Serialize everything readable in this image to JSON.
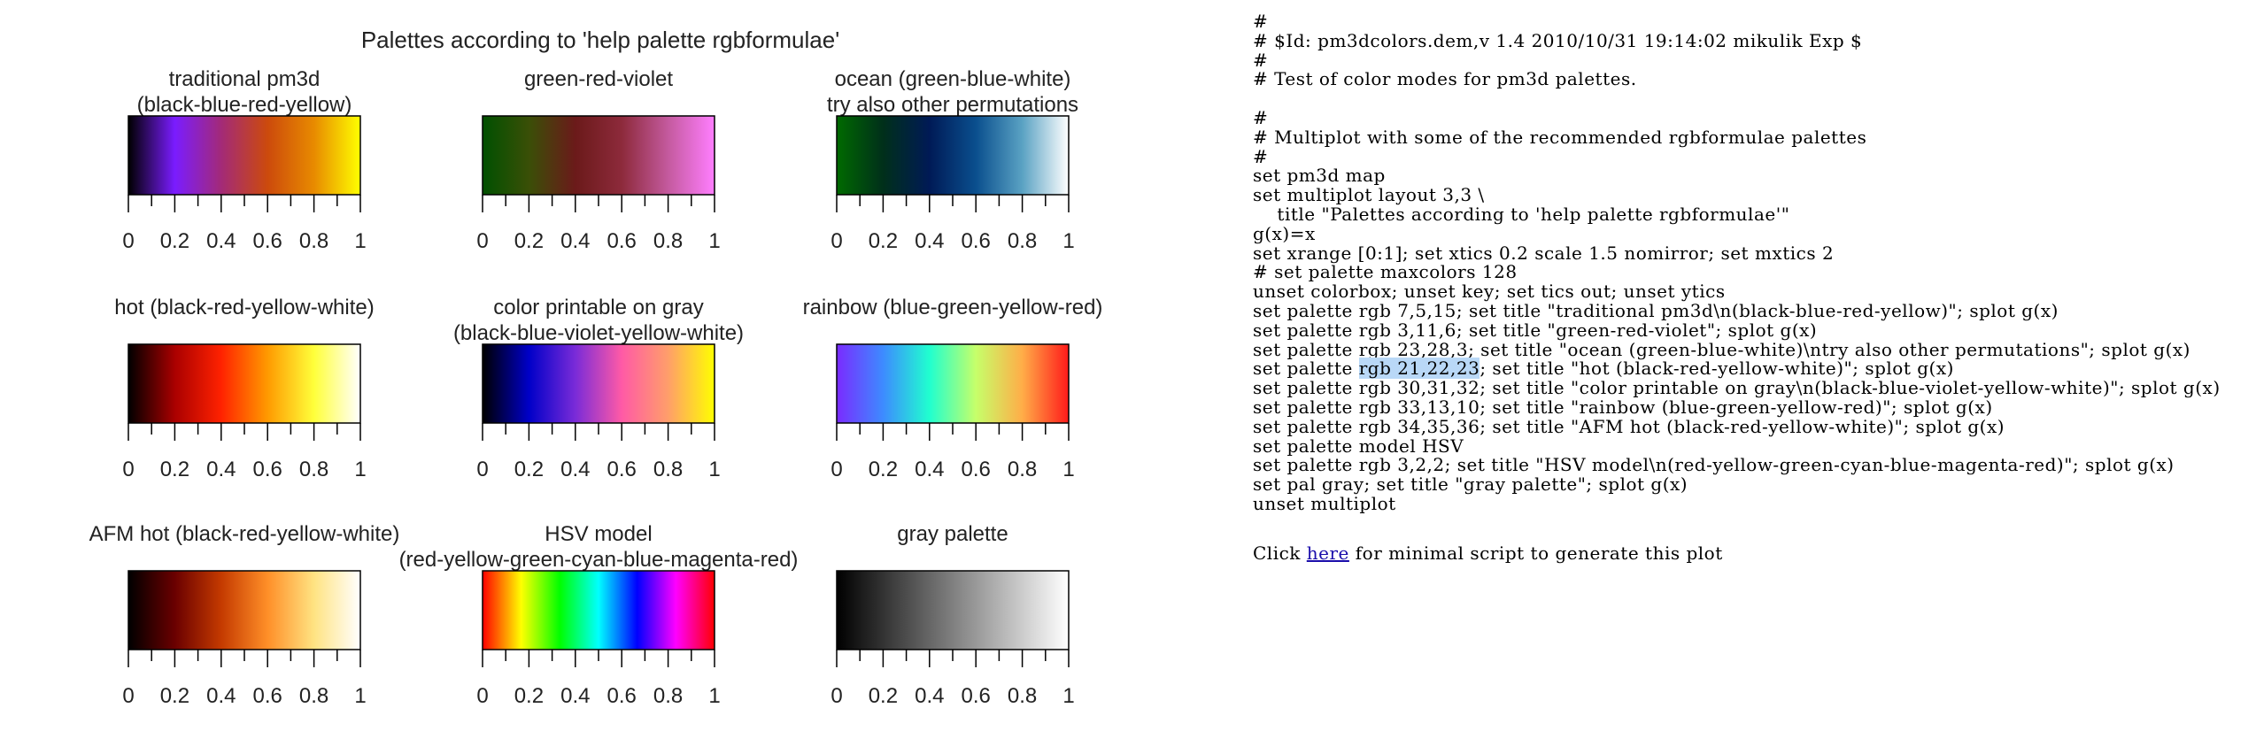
{
  "main_title": "Palettes according to 'help palette rgbformulae'",
  "palettes": [
    {
      "title1": "traditional pm3d",
      "title2": "(black-blue-red-yellow)",
      "stops": [
        "#000000",
        "#7a1cff",
        "#a32a78",
        "#cc4a0c",
        "#e88a00",
        "#ffff00"
      ]
    },
    {
      "title1": "green-red-violet",
      "title2": "",
      "stops": [
        "#005000",
        "#3a4f07",
        "#6b1a1a",
        "#8d2a3b",
        "#c45a9e",
        "#ff7eff"
      ]
    },
    {
      "title1": "ocean (green-blue-white)",
      "title2": "try also other permutations",
      "stops": [
        "#006a00",
        "#002f1a",
        "#001a56",
        "#0a4f8e",
        "#5aa2c3",
        "#ffffff"
      ]
    },
    {
      "title1": "hot (black-red-yellow-white)",
      "title2": "",
      "stops": [
        "#000000",
        "#aa0000",
        "#ff2200",
        "#ff9a00",
        "#ffff3a",
        "#ffffff"
      ]
    },
    {
      "title1": "color printable on gray",
      "title2": "(black-blue-violet-yellow-white)",
      "stops": [
        "#000000",
        "#0000c8",
        "#7a2bd8",
        "#ff5aa6",
        "#ff9e6a",
        "#ffff00"
      ]
    },
    {
      "title1": "rainbow (blue-green-yellow-red)",
      "title2": "",
      "stops": [
        "#7a2bff",
        "#3d8bff",
        "#20ffcf",
        "#c6ff6a",
        "#ffad48",
        "#ff1a1a"
      ]
    },
    {
      "title1": "AFM hot (black-red-yellow-white)",
      "title2": "",
      "stops": [
        "#000000",
        "#6a0000",
        "#c43a00",
        "#ff8f28",
        "#ffe382",
        "#ffffff"
      ]
    },
    {
      "title1": "HSV model",
      "title2": "(red-yellow-green-cyan-blue-magenta-red)",
      "stops": [
        "#ff0000",
        "#ffff00",
        "#00ff00",
        "#00ffff",
        "#0000ff",
        "#ff00ff",
        "#ff0000"
      ]
    },
    {
      "title1": "gray palette",
      "title2": "",
      "stops": [
        "#000000",
        "#ffffff"
      ]
    }
  ],
  "tick_labels": [
    "0",
    "0.2",
    "0.4",
    "0.6",
    "0.8",
    "1"
  ],
  "code": {
    "lines": [
      "#",
      "# $Id: pm3dcolors.dem,v 1.4 2010/10/31 19:14:02 mikulik Exp $",
      "#",
      "# Test of color modes for pm3d palettes.",
      "",
      "#",
      "# Multiplot with some of the recommended rgbformulae palettes",
      "#",
      "set pm3d map",
      "set multiplot layout 3,3 \\",
      "    title \"Palettes according to 'help palette rgbformulae'\"",
      "g(x)=x",
      "set xrange [0:1]; set xtics 0.2 scale 1.5 nomirror; set mxtics 2",
      "# set palette maxcolors 128",
      "unset colorbox; unset key; set tics out; unset ytics",
      "set palette rgb 7,5,15; set title \"traditional pm3d\\n(black-blue-red-yellow)\"; splot g(x)",
      "set palette rgb 3,11,6; set title \"green-red-violet\"; splot g(x)",
      "set palette rgb 23,28,3; set title \"ocean (green-blue-white)\\ntry also other permutations\"; splot g(x)",
      "__HL__",
      "set palette rgb 30,31,32; set title \"color printable on gray\\n(black-blue-violet-yellow-white)\"; splot g(x)",
      "set palette rgb 33,13,10; set title \"rainbow (blue-green-yellow-red)\"; splot g(x)",
      "set palette rgb 34,35,36; set title \"AFM hot (black-red-yellow-white)\"; splot g(x)",
      "set palette model HSV",
      "set palette rgb 3,2,2; set title \"HSV model\\n(red-yellow-green-cyan-blue-magenta-red)\"; splot g(x)",
      "set pal gray; set title \"gray palette\"; splot g(x)",
      "unset multiplot"
    ],
    "hl_before": "set palette ",
    "hl_text": "rgb 21,22,23",
    "hl_after": "; set title \"hot (black-red-yellow-white)\"; splot g(x)",
    "footer_before": "Click ",
    "footer_link": "here",
    "footer_after": " for minimal script to generate this plot"
  }
}
